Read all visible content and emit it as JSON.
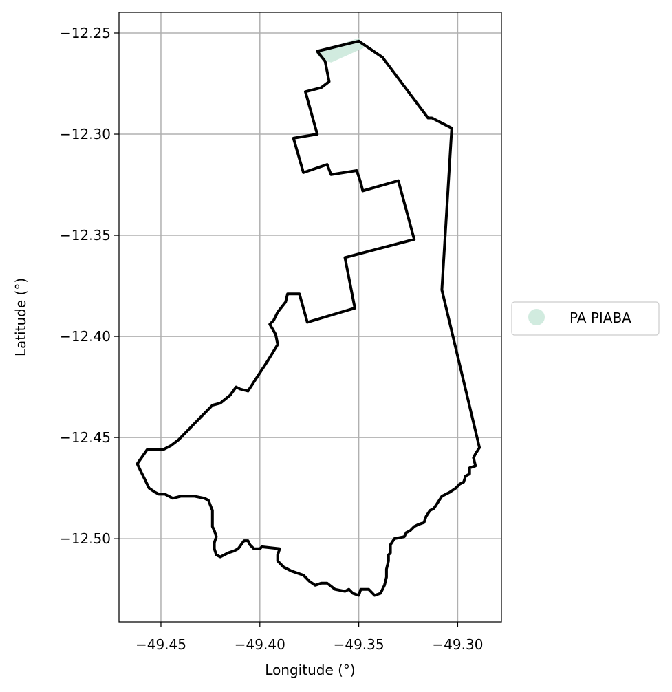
{
  "map": {
    "xlabel": "Longitude (°)",
    "ylabel": "Latitude (°)",
    "xlim": [
      -49.4712,
      -49.2779
    ],
    "ylim": [
      -12.5411,
      -12.2398
    ],
    "grid": true,
    "xticks": [
      {
        "value": -49.45,
        "label": "−49.45"
      },
      {
        "value": -49.4,
        "label": "−49.40"
      },
      {
        "value": -49.35,
        "label": "−49.35"
      },
      {
        "value": -49.3,
        "label": "−49.30"
      }
    ],
    "yticks": [
      {
        "value": -12.25,
        "label": "−12.25"
      },
      {
        "value": -12.3,
        "label": "−12.30"
      },
      {
        "value": -12.35,
        "label": "−12.35"
      },
      {
        "value": -12.4,
        "label": "−12.40"
      },
      {
        "value": -12.45,
        "label": "−12.45"
      },
      {
        "value": -12.5,
        "label": "−12.50"
      }
    ],
    "legend": {
      "placement": "center-left-outside",
      "entries": [
        {
          "label": "PA PIABA",
          "color": "#d1ebdf"
        }
      ]
    },
    "boundary": {
      "color": "#000000",
      "coordinates": [
        [
          -49.35,
          -12.254
        ],
        [
          -49.338,
          -12.262
        ],
        [
          -49.315,
          -12.292
        ],
        [
          -49.313,
          -12.292
        ],
        [
          -49.303,
          -12.297
        ],
        [
          -49.308,
          -12.377
        ],
        [
          -49.289,
          -12.455
        ],
        [
          -49.291,
          -12.458
        ],
        [
          -49.292,
          -12.46
        ],
        [
          -49.291,
          -12.464
        ],
        [
          -49.294,
          -12.465
        ],
        [
          -49.294,
          -12.468
        ],
        [
          -49.296,
          -12.469
        ],
        [
          -49.297,
          -12.472
        ],
        [
          -49.299,
          -12.473
        ],
        [
          -49.301,
          -12.475
        ],
        [
          -49.304,
          -12.477
        ],
        [
          -49.308,
          -12.479
        ],
        [
          -49.31,
          -12.482
        ],
        [
          -49.312,
          -12.485
        ],
        [
          -49.314,
          -12.486
        ],
        [
          -49.316,
          -12.489
        ],
        [
          -49.317,
          -12.492
        ],
        [
          -49.32,
          -12.493
        ],
        [
          -49.322,
          -12.494
        ],
        [
          -49.324,
          -12.496
        ],
        [
          -49.326,
          -12.497
        ],
        [
          -49.327,
          -12.499
        ],
        [
          -49.332,
          -12.5
        ],
        [
          -49.334,
          -12.503
        ],
        [
          -49.334,
          -12.507
        ],
        [
          -49.335,
          -12.508
        ],
        [
          -49.335,
          -12.511
        ],
        [
          -49.336,
          -12.515
        ],
        [
          -49.336,
          -12.519
        ],
        [
          -49.337,
          -12.523
        ],
        [
          -49.339,
          -12.527
        ],
        [
          -49.342,
          -12.528
        ],
        [
          -49.345,
          -12.525
        ],
        [
          -49.349,
          -12.525
        ],
        [
          -49.35,
          -12.528
        ],
        [
          -49.353,
          -12.527
        ],
        [
          -49.355,
          -12.525
        ],
        [
          -49.357,
          -12.526
        ],
        [
          -49.362,
          -12.525
        ],
        [
          -49.366,
          -12.522
        ],
        [
          -49.369,
          -12.522
        ],
        [
          -49.372,
          -12.523
        ],
        [
          -49.375,
          -12.521
        ],
        [
          -49.378,
          -12.518
        ],
        [
          -49.381,
          -12.517
        ],
        [
          -49.384,
          -12.516
        ],
        [
          -49.388,
          -12.514
        ],
        [
          -49.391,
          -12.511
        ],
        [
          -49.391,
          -12.508
        ],
        [
          -49.39,
          -12.505
        ],
        [
          -49.399,
          -12.504
        ],
        [
          -49.4,
          -12.505
        ],
        [
          -49.403,
          -12.505
        ],
        [
          -49.405,
          -12.503
        ],
        [
          -49.406,
          -12.501
        ],
        [
          -49.408,
          -12.501
        ],
        [
          -49.411,
          -12.505
        ],
        [
          -49.413,
          -12.506
        ],
        [
          -49.416,
          -12.507
        ],
        [
          -49.42,
          -12.509
        ],
        [
          -49.422,
          -12.508
        ],
        [
          -49.423,
          -12.505
        ],
        [
          -49.423,
          -12.502
        ],
        [
          -49.422,
          -12.499
        ],
        [
          -49.423,
          -12.496
        ],
        [
          -49.424,
          -12.494
        ],
        [
          -49.424,
          -12.486
        ],
        [
          -49.426,
          -12.481
        ],
        [
          -49.428,
          -12.48
        ],
        [
          -49.433,
          -12.479
        ],
        [
          -49.437,
          -12.479
        ],
        [
          -49.44,
          -12.479
        ],
        [
          -49.444,
          -12.48
        ],
        [
          -49.448,
          -12.478
        ],
        [
          -49.451,
          -12.478
        ],
        [
          -49.453,
          -12.477
        ],
        [
          -49.456,
          -12.475
        ],
        [
          -49.458,
          -12.471
        ],
        [
          -49.46,
          -12.467
        ],
        [
          -49.462,
          -12.463
        ],
        [
          -49.457,
          -12.456
        ],
        [
          -49.449,
          -12.456
        ],
        [
          -49.445,
          -12.454
        ],
        [
          -49.441,
          -12.451
        ],
        [
          -49.437,
          -12.447
        ],
        [
          -49.433,
          -12.443
        ],
        [
          -49.429,
          -12.439
        ],
        [
          -49.424,
          -12.434
        ],
        [
          -49.42,
          -12.433
        ],
        [
          -49.415,
          -12.429
        ],
        [
          -49.412,
          -12.425
        ],
        [
          -49.41,
          -12.426
        ],
        [
          -49.406,
          -12.427
        ],
        [
          -49.396,
          -12.412
        ],
        [
          -49.391,
          -12.404
        ],
        [
          -49.392,
          -12.399
        ],
        [
          -49.395,
          -12.394
        ],
        [
          -49.393,
          -12.392
        ],
        [
          -49.391,
          -12.388
        ],
        [
          -49.387,
          -12.383
        ],
        [
          -49.386,
          -12.379
        ],
        [
          -49.38,
          -12.379
        ],
        [
          -49.376,
          -12.393
        ],
        [
          -49.352,
          -12.386
        ],
        [
          -49.357,
          -12.361
        ],
        [
          -49.322,
          -12.352
        ],
        [
          -49.33,
          -12.323
        ],
        [
          -49.348,
          -12.328
        ],
        [
          -49.349,
          -12.324
        ],
        [
          -49.351,
          -12.318
        ],
        [
          -49.364,
          -12.32
        ],
        [
          -49.366,
          -12.315
        ],
        [
          -49.378,
          -12.319
        ],
        [
          -49.383,
          -12.302
        ],
        [
          -49.371,
          -12.3
        ],
        [
          -49.377,
          -12.279
        ],
        [
          -49.369,
          -12.277
        ],
        [
          -49.365,
          -12.274
        ],
        [
          -49.367,
          -12.264
        ],
        [
          -49.371,
          -12.259
        ],
        [
          -49.35,
          -12.254
        ]
      ]
    },
    "highlight": {
      "color": "#d1ebdf",
      "coordinates": [
        [
          -49.371,
          -12.26
        ],
        [
          -49.35,
          -12.253
        ],
        [
          -49.348,
          -12.257
        ],
        [
          -49.364,
          -12.264
        ],
        [
          -49.368,
          -12.263
        ]
      ]
    }
  }
}
